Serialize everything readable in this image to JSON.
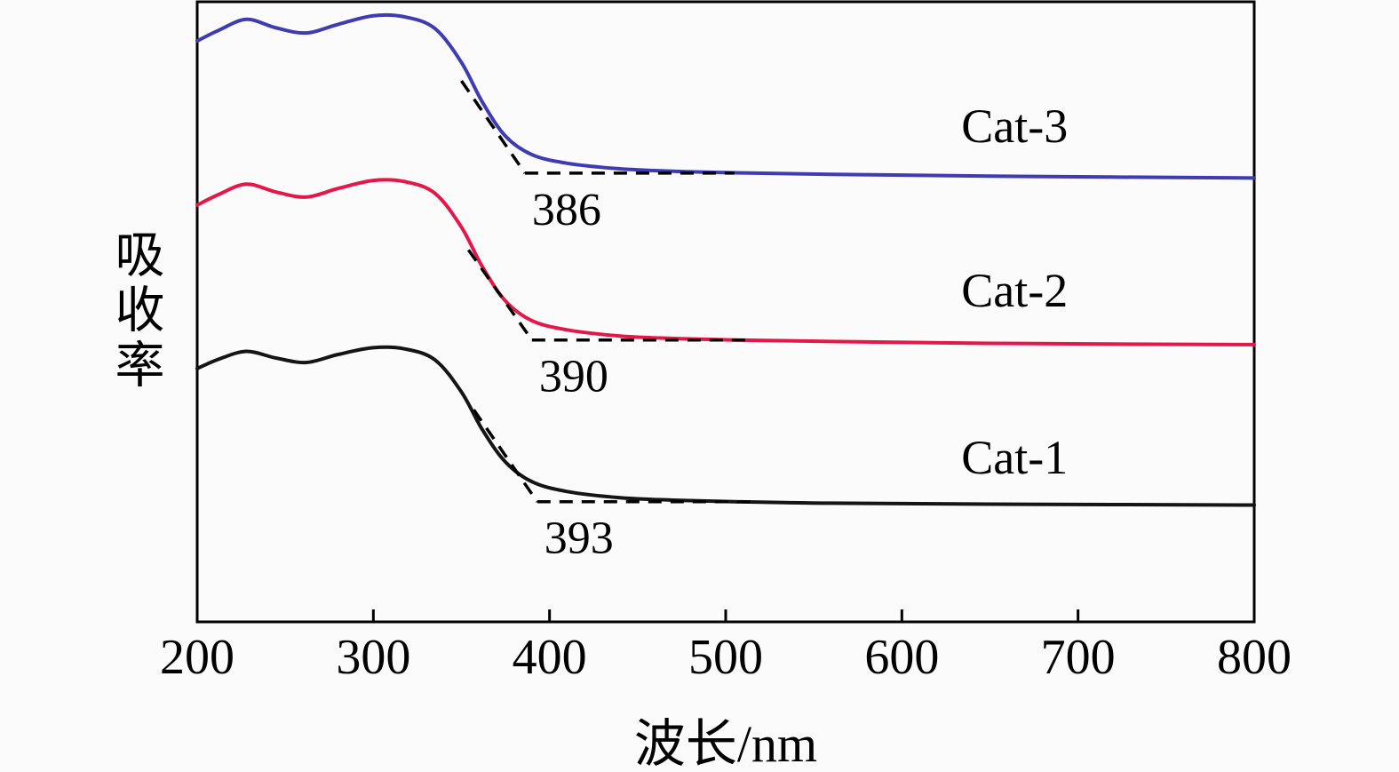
{
  "canvas": {
    "background": "#fbfbfb",
    "axis_color": "#000000"
  },
  "chart_data": {
    "type": "line",
    "title": "",
    "xlabel": "波长/nm",
    "ylabel": "吸收率",
    "xlim": [
      200,
      800
    ],
    "x_ticks": [
      200,
      300,
      400,
      500,
      600,
      700,
      800
    ],
    "y_axis_note": "absorbance in arbitrary units; three curves vertically offset; u = 0-100 display scale of axis height",
    "grid": false,
    "legend": "none (in-plot series labels)",
    "series": [
      {
        "name": "Cat-3",
        "color": "#3f3bb0",
        "band_edge_nm": 386,
        "label": {
          "text": "Cat-3",
          "nm": 664,
          "u": 78.0
        },
        "points": {
          "nm": [
            200,
            212,
            228,
            245,
            262,
            280,
            300,
            318,
            335,
            350,
            362,
            375,
            390,
            410,
            440,
            470,
            505,
            560,
            650,
            800
          ],
          "u": [
            94.5,
            96.2,
            98.0,
            96.6,
            95.8,
            97.2,
            98.6,
            98.4,
            96.5,
            91.0,
            84.5,
            79.0,
            76.0,
            74.6,
            73.7,
            73.3,
            73.05,
            72.8,
            72.5,
            72.2
          ]
        },
        "band_edge": {
          "label": "386",
          "edge_nm": 386,
          "plateau_u": 73.0,
          "tangent_from_nm": 350,
          "tangent_from_u": 88.0,
          "baseline_to_nm": 505
        }
      },
      {
        "name": "Cat-2",
        "color": "#e4174a",
        "band_edge_nm": 390,
        "label": {
          "text": "Cat-2",
          "nm": 664,
          "u": 51.3
        },
        "points": {
          "nm": [
            200,
            212,
            228,
            245,
            262,
            280,
            300,
            318,
            335,
            350,
            362,
            375,
            390,
            410,
            440,
            470,
            505,
            560,
            650,
            800
          ],
          "u": [
            67.8,
            69.5,
            71.2,
            69.9,
            69.1,
            70.5,
            71.8,
            71.6,
            69.7,
            64.2,
            57.7,
            52.2,
            49.0,
            47.5,
            46.5,
            46.1,
            45.85,
            45.6,
            45.3,
            45.1
          ]
        },
        "band_edge": {
          "label": "390",
          "edge_nm": 390,
          "plateau_u": 45.85,
          "tangent_from_nm": 354,
          "tangent_from_u": 60.5,
          "baseline_to_nm": 512
        }
      },
      {
        "name": "Cat-1",
        "color": "#151515",
        "band_edge_nm": 393,
        "label": {
          "text": "Cat-1",
          "nm": 664,
          "u": 24.1
        },
        "points": {
          "nm": [
            200,
            212,
            228,
            245,
            262,
            280,
            300,
            318,
            335,
            350,
            362,
            375,
            390,
            410,
            440,
            470,
            505,
            560,
            650,
            800
          ],
          "u": [
            41.2,
            42.7,
            44.0,
            42.9,
            42.2,
            43.5,
            44.6,
            44.4,
            42.6,
            37.4,
            31.2,
            26.0,
            22.8,
            21.2,
            20.2,
            19.8,
            19.55,
            19.3,
            19.15,
            19.0
          ]
        },
        "band_edge": {
          "label": "393",
          "edge_nm": 393,
          "plateau_u": 19.55,
          "tangent_from_nm": 357,
          "tangent_from_u": 34.5,
          "baseline_to_nm": 518
        }
      }
    ]
  }
}
